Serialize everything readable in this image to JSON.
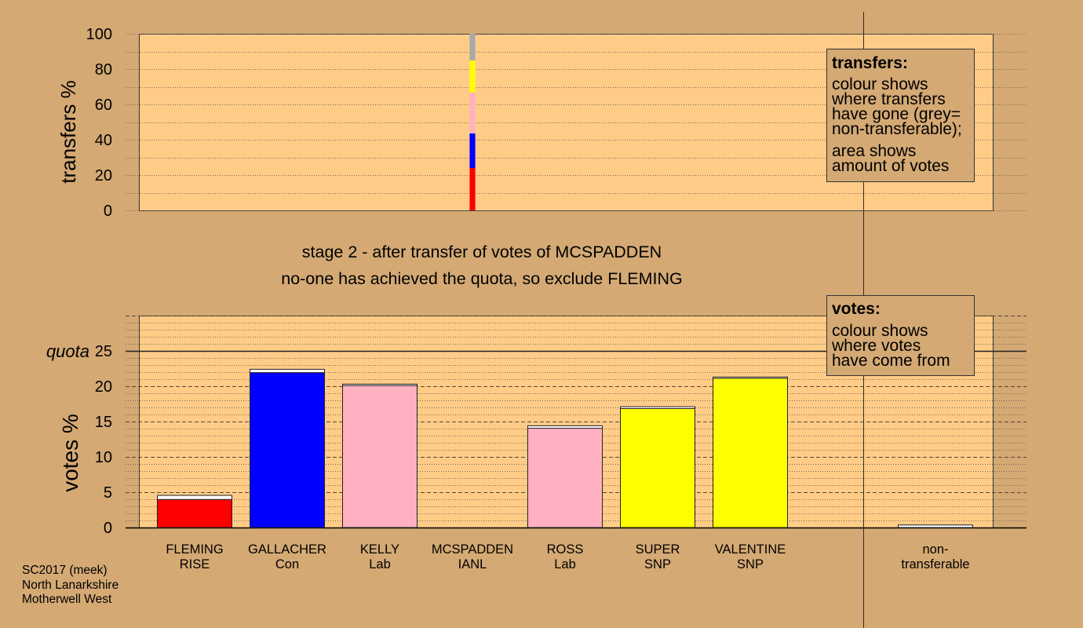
{
  "colors": {
    "background": "#D4A974",
    "plot": "#FFCC88",
    "grid": "#7A6650",
    "grid_major": "#5A4632",
    "ink": "#222222",
    "red": "#FF0000",
    "blue": "#0000FF",
    "pink": "#FFB1C2",
    "yellow": "#FFFF00",
    "grey": "#A8A8A8",
    "white": "#FFFFFF"
  },
  "footer": {
    "election": "SC2017 (meek)",
    "council": "North Lanarkshire",
    "ward": "Motherwell West"
  },
  "stage": {
    "heading": "stage 2 - after transfer of votes of MCSPADDEN",
    "outcome": "no-one has achieved the quota, so exclude FLEMING"
  },
  "legend_transfers": {
    "title": "transfers:",
    "line1": "colour shows",
    "line2": "where transfers",
    "line3": "have gone (grey=",
    "line4": "non-transferable);",
    "line5": "area shows",
    "line6": "amount of votes"
  },
  "legend_votes": {
    "title": "votes:",
    "line1": "colour shows",
    "line2": "where votes",
    "line3": "have come from"
  },
  "chart_data": [
    {
      "type": "bar",
      "stacked": true,
      "ylabel": "transfers %",
      "ylim": [
        0,
        100
      ],
      "yticks": [
        0,
        20,
        40,
        60,
        80,
        100
      ],
      "gridlines_every": 10,
      "bars": [
        {
          "segments": []
        },
        {
          "segments": []
        },
        {
          "segments": []
        },
        {
          "votes_pct": 2.4,
          "segments": [
            {
              "value": 24.0,
              "color": "#FF0000"
            },
            {
              "value": 19.6,
              "color": "#0000FF"
            },
            {
              "value": 23.1,
              "color": "#FFB1C2"
            },
            {
              "value": 18.2,
              "color": "#FFFF00"
            },
            {
              "value": 15.1,
              "color": "#A8A8A8"
            }
          ]
        },
        {
          "segments": []
        },
        {
          "segments": []
        },
        {
          "segments": []
        },
        {
          "segments": []
        }
      ]
    },
    {
      "type": "bar",
      "stacked": true,
      "ylabel": "votes %",
      "ylim": [
        0,
        30
      ],
      "yticks": [
        0,
        5,
        10,
        15,
        20,
        25
      ],
      "minor_grid_every": 1,
      "major_grid_every": 5,
      "quota": 25,
      "quota_label": "quota",
      "categories": [
        {
          "line1": "FLEMING",
          "line2": "RISE"
        },
        {
          "line1": "GALLACHER",
          "line2": "Con"
        },
        {
          "line1": "KELLY",
          "line2": "Lab"
        },
        {
          "line1": "MCSPADDEN",
          "line2": "IANL"
        },
        {
          "line1": "ROSS",
          "line2": "Lab"
        },
        {
          "line1": "SUPER",
          "line2": "SNP"
        },
        {
          "line1": "VALENTINE",
          "line2": "SNP"
        },
        {
          "line1": "non-",
          "line2": "transferable"
        }
      ],
      "bars": [
        {
          "segments": [
            {
              "value": 3.97,
              "color": "#FF0000"
            },
            {
              "value": 0.58,
              "color": "#FFFFFF"
            }
          ]
        },
        {
          "segments": [
            {
              "value": 21.93,
              "color": "#0000FF"
            },
            {
              "value": 0.47,
              "color": "#FFFFFF"
            }
          ]
        },
        {
          "segments": [
            {
              "value": 20.1,
              "color": "#FFB1C2"
            },
            {
              "value": 0.2,
              "color": "#FFFFFF"
            }
          ]
        },
        {
          "segments": []
        },
        {
          "segments": [
            {
              "value": 14.05,
              "color": "#FFB1C2"
            },
            {
              "value": 0.35,
              "color": "#FFFFFF"
            }
          ]
        },
        {
          "segments": [
            {
              "value": 16.84,
              "color": "#FFFF00"
            },
            {
              "value": 0.26,
              "color": "#FFFFFF"
            }
          ]
        },
        {
          "segments": [
            {
              "value": 21.12,
              "color": "#FFFF00"
            },
            {
              "value": 0.18,
              "color": "#FFFFFF"
            }
          ]
        },
        {
          "segments": [
            {
              "value": 0.36,
              "color": "#FFFFFF"
            }
          ]
        }
      ]
    }
  ]
}
